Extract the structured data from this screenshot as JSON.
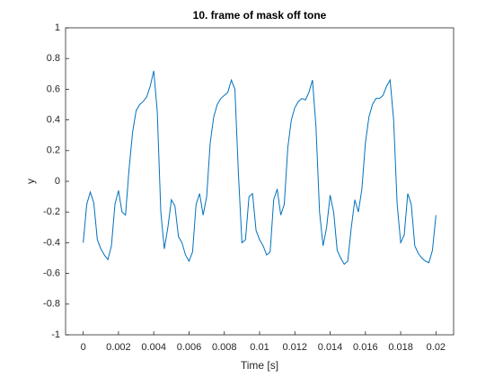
{
  "chart_data": {
    "type": "line",
    "title": "10. frame of mask off tone",
    "xlabel": "Time [s]",
    "ylabel": "y",
    "x": [
      0,
      0.0002,
      0.0004,
      0.0006,
      0.0008,
      0.001,
      0.0012,
      0.0014,
      0.0016,
      0.0018,
      0.002,
      0.0022,
      0.0024,
      0.0026,
      0.0028,
      0.003,
      0.0032,
      0.0034,
      0.0036,
      0.0038,
      0.004,
      0.0042,
      0.0044,
      0.0046,
      0.0048,
      0.005,
      0.0052,
      0.0054,
      0.0056,
      0.0058,
      0.006,
      0.0062,
      0.0064,
      0.0066,
      0.0068,
      0.007,
      0.0072,
      0.0074,
      0.0076,
      0.0078,
      0.008,
      0.0082,
      0.0084,
      0.0086,
      0.0088,
      0.009,
      0.0092,
      0.0094,
      0.0096,
      0.0098,
      0.01,
      0.0102,
      0.0104,
      0.0106,
      0.0108,
      0.011,
      0.0112,
      0.0114,
      0.0116,
      0.0118,
      0.012,
      0.0122,
      0.0124,
      0.0126,
      0.0128,
      0.013,
      0.0132,
      0.0134,
      0.0136,
      0.0138,
      0.014,
      0.0142,
      0.0144,
      0.0146,
      0.0148,
      0.015,
      0.0152,
      0.0154,
      0.0156,
      0.0158,
      0.016,
      0.0162,
      0.0164,
      0.0166,
      0.0168,
      0.017,
      0.0172,
      0.0174,
      0.0176,
      0.0178,
      0.018,
      0.0182,
      0.0184,
      0.0186,
      0.0188,
      0.019,
      0.0192,
      0.0194,
      0.0196,
      0.0198,
      0.02
    ],
    "series": [
      {
        "color": "#0072bd",
        "values": [
          -0.4,
          -0.15,
          -0.07,
          -0.14,
          -0.38,
          -0.44,
          -0.48,
          -0.51,
          -0.42,
          -0.15,
          -0.06,
          -0.2,
          -0.22,
          0.08,
          0.32,
          0.46,
          0.5,
          0.52,
          0.55,
          0.62,
          0.72,
          0.45,
          -0.2,
          -0.44,
          -0.3,
          -0.12,
          -0.16,
          -0.36,
          -0.4,
          -0.48,
          -0.52,
          -0.46,
          -0.15,
          -0.08,
          -0.22,
          -0.1,
          0.25,
          0.42,
          0.5,
          0.54,
          0.56,
          0.58,
          0.66,
          0.6,
          0.05,
          -0.4,
          -0.38,
          -0.1,
          -0.08,
          -0.32,
          -0.38,
          -0.42,
          -0.48,
          -0.46,
          -0.12,
          -0.05,
          -0.22,
          -0.15,
          0.22,
          0.4,
          0.48,
          0.52,
          0.54,
          0.53,
          0.58,
          0.66,
          0.35,
          -0.2,
          -0.42,
          -0.3,
          -0.09,
          -0.2,
          -0.45,
          -0.5,
          -0.54,
          -0.52,
          -0.3,
          -0.12,
          -0.2,
          -0.05,
          0.25,
          0.42,
          0.5,
          0.54,
          0.54,
          0.56,
          0.62,
          0.66,
          0.4,
          -0.15,
          -0.4,
          -0.35,
          -0.08,
          -0.15,
          -0.42,
          -0.47,
          -0.5,
          -0.52,
          -0.53,
          -0.45,
          -0.22
        ]
      }
    ],
    "xlim": [
      -0.001,
      0.021
    ],
    "xticks": [
      0,
      0.002,
      0.004,
      0.006,
      0.008,
      0.01,
      0.012,
      0.014,
      0.016,
      0.018,
      0.02
    ],
    "ylim": [
      -1,
      1
    ],
    "yticks": [
      -1,
      -0.8,
      -0.6,
      -0.4,
      -0.2,
      0,
      0.2,
      0.4,
      0.6,
      0.8,
      1
    ]
  }
}
